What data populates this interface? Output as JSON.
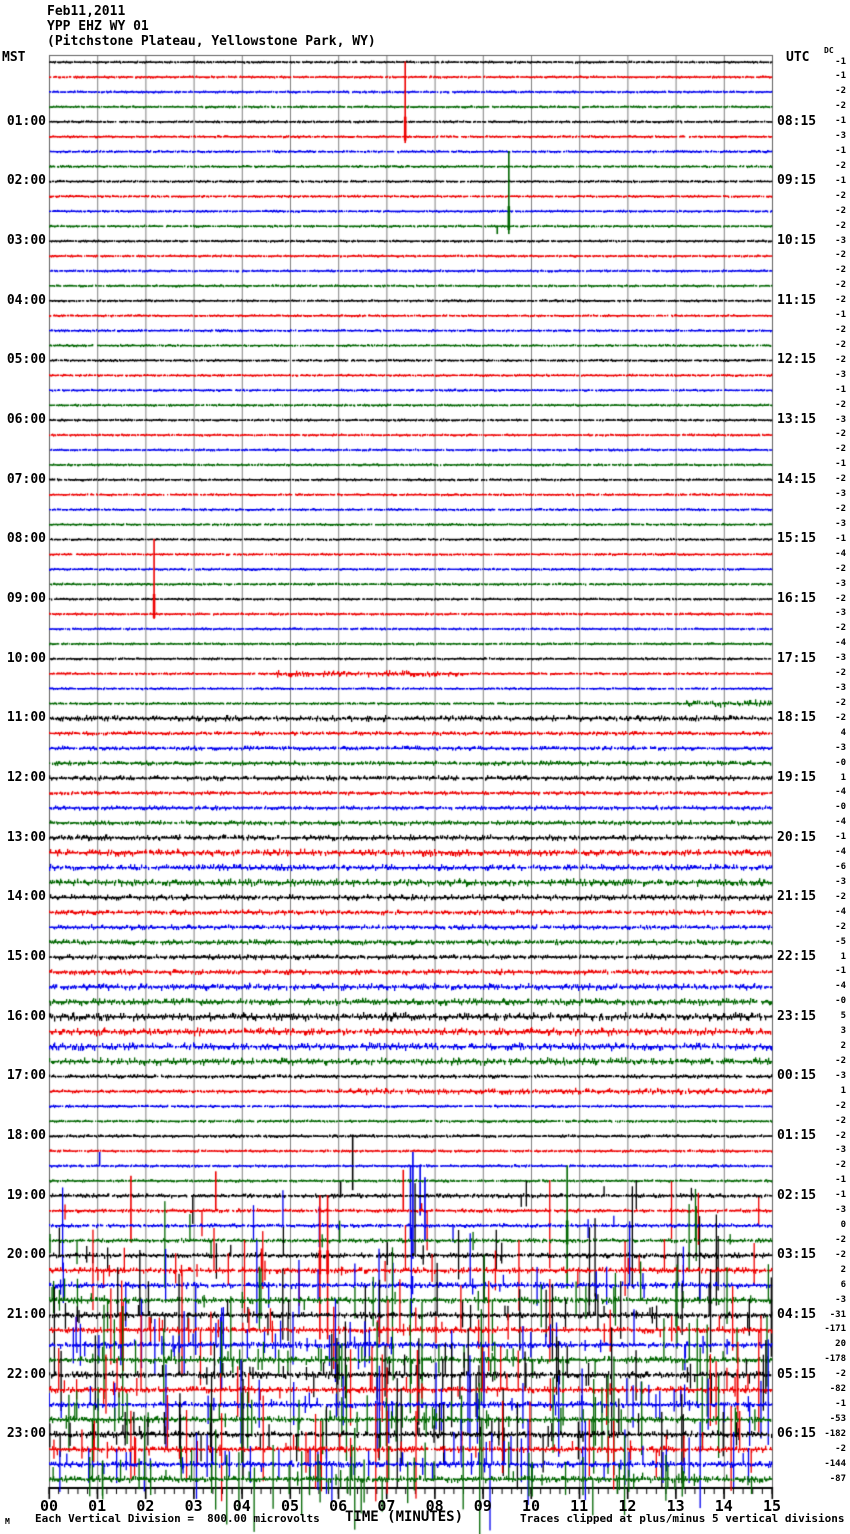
{
  "title": {
    "date": "Feb11,2011",
    "station": "YPP EHZ WY 01",
    "location": "(Pitchstone Plateau, Yellowstone Park, WY)"
  },
  "axes": {
    "left_header": "MST",
    "right_header": "UTC",
    "dc_header": "DC",
    "x_axis_title": "TIME (MINUTES)",
    "x_ticks": [
      "00",
      "01",
      "02",
      "03",
      "04",
      "05",
      "06",
      "07",
      "08",
      "09",
      "10",
      "11",
      "12",
      "13",
      "14",
      "15"
    ],
    "left_labels": [
      "01:00",
      "02:00",
      "03:00",
      "04:00",
      "05:00",
      "06:00",
      "07:00",
      "08:00",
      "09:00",
      "10:00",
      "11:00",
      "12:00",
      "13:00",
      "14:00",
      "15:00",
      "16:00",
      "17:00",
      "18:00",
      "19:00",
      "20:00",
      "21:00",
      "22:00",
      "23:00"
    ],
    "right_labels": [
      "08:15",
      "09:15",
      "10:15",
      "11:15",
      "12:15",
      "13:15",
      "14:15",
      "15:15",
      "16:15",
      "17:15",
      "18:15",
      "19:15",
      "20:15",
      "21:15",
      "22:15",
      "23:15",
      "00:15",
      "01:15",
      "02:15",
      "03:15",
      "04:15",
      "05:15",
      "06:15"
    ]
  },
  "footer": {
    "left": "Each Vertical Division =  800.00 microvolts",
    "right": "Traces clipped at plus/minus 5 vertical divisions",
    "corner": "M"
  },
  "chart_data": {
    "type": "line",
    "subtype": "helicorder-seismogram",
    "x_range_minutes": [
      0,
      15
    ],
    "minutes_per_line": 15,
    "lines_per_hour": 4,
    "division_microvolts": 800.0,
    "clip_divisions": 5,
    "trace_color_cycle": [
      "#000000",
      "#ee0000",
      "#0000ee",
      "#006600"
    ],
    "grid_color": "#808080",
    "grid": "vertical-minute-lines",
    "traces": [
      {
        "mst": "00:00",
        "dc": "-1",
        "n": 0.5
      },
      {
        "mst": "00:15",
        "dc": "-1",
        "n": 0.5
      },
      {
        "mst": "00:30",
        "dc": "-2",
        "n": 0.5
      },
      {
        "mst": "00:45",
        "dc": "-2",
        "n": 0.5
      },
      {
        "mst": "01:00",
        "dc": "-1",
        "n": 0.5
      },
      {
        "mst": "01:15",
        "dc": "-3",
        "n": 0.5,
        "s": [
          [
            7.39,
            5,
            0.4
          ]
        ]
      },
      {
        "mst": "01:30",
        "dc": "-1",
        "n": 0.5
      },
      {
        "mst": "01:45",
        "dc": "-2",
        "n": 0.5
      },
      {
        "mst": "02:00",
        "dc": "-1",
        "n": 0.5
      },
      {
        "mst": "02:15",
        "dc": "-2",
        "n": 0.5
      },
      {
        "mst": "02:30",
        "dc": "-2",
        "n": 0.5
      },
      {
        "mst": "02:45",
        "dc": "-2",
        "n": 0.5,
        "s": [
          [
            9.3,
            0,
            0.5
          ],
          [
            9.54,
            5,
            0.5
          ]
        ]
      },
      {
        "mst": "03:00",
        "dc": "-3",
        "n": 0.5
      },
      {
        "mst": "03:15",
        "dc": "-2",
        "n": 0.5
      },
      {
        "mst": "03:30",
        "dc": "-2",
        "n": 0.5
      },
      {
        "mst": "03:45",
        "dc": "-2",
        "n": 0.5
      },
      {
        "mst": "04:00",
        "dc": "-2",
        "n": 0.5
      },
      {
        "mst": "04:15",
        "dc": "-1",
        "n": 0.5
      },
      {
        "mst": "04:30",
        "dc": "-2",
        "n": 0.5
      },
      {
        "mst": "04:45",
        "dc": "-2",
        "n": 0.5
      },
      {
        "mst": "05:00",
        "dc": "-2",
        "n": 0.5
      },
      {
        "mst": "05:15",
        "dc": "-3",
        "n": 0.5
      },
      {
        "mst": "05:30",
        "dc": "-1",
        "n": 0.5
      },
      {
        "mst": "05:45",
        "dc": "-2",
        "n": 0.5
      },
      {
        "mst": "06:00",
        "dc": "-3",
        "n": 0.5
      },
      {
        "mst": "06:15",
        "dc": "-2",
        "n": 0.5
      },
      {
        "mst": "06:30",
        "dc": "-2",
        "n": 0.5
      },
      {
        "mst": "06:45",
        "dc": "-1",
        "n": 0.5
      },
      {
        "mst": "07:00",
        "dc": "-2",
        "n": 0.5
      },
      {
        "mst": "07:15",
        "dc": "-3",
        "n": 0.5
      },
      {
        "mst": "07:30",
        "dc": "-2",
        "n": 0.5
      },
      {
        "mst": "07:45",
        "dc": "-3",
        "n": 0.5
      },
      {
        "mst": "08:00",
        "dc": "-1",
        "n": 0.5
      },
      {
        "mst": "08:15",
        "dc": "-4",
        "n": 0.5
      },
      {
        "mst": "08:30",
        "dc": "-2",
        "n": 0.5
      },
      {
        "mst": "08:45",
        "dc": "-3",
        "n": 0.5
      },
      {
        "mst": "09:00",
        "dc": "-2",
        "n": 0.5
      },
      {
        "mst": "09:15",
        "dc": "-3",
        "n": 0.5,
        "s": [
          [
            2.18,
            5,
            0.3
          ]
        ]
      },
      {
        "mst": "09:30",
        "dc": "-2",
        "n": 0.5
      },
      {
        "mst": "09:45",
        "dc": "-4",
        "n": 0.5
      },
      {
        "mst": "10:00",
        "dc": "-3",
        "n": 0.5
      },
      {
        "mst": "10:15",
        "dc": "-2",
        "n": 0.5,
        "b": [
          [
            4.7,
            8.6,
            1.6
          ]
        ]
      },
      {
        "mst": "10:30",
        "dc": "-3",
        "n": 0.5
      },
      {
        "mst": "10:45",
        "dc": "-2",
        "n": 0.5,
        "b": [
          [
            13.2,
            15,
            1.9
          ]
        ]
      },
      {
        "mst": "11:00",
        "dc": "-2",
        "n": 1.4
      },
      {
        "mst": "11:15",
        "dc": "4",
        "n": 0.9
      },
      {
        "mst": "11:30",
        "dc": "-3",
        "n": 1.0
      },
      {
        "mst": "11:45",
        "dc": "-0",
        "n": 1.1
      },
      {
        "mst": "12:00",
        "dc": "1",
        "n": 1.2
      },
      {
        "mst": "12:15",
        "dc": "-4",
        "n": 0.9
      },
      {
        "mst": "12:30",
        "dc": "-0",
        "n": 1.0
      },
      {
        "mst": "12:45",
        "dc": "-4",
        "n": 1.1
      },
      {
        "mst": "13:00",
        "dc": "-1",
        "n": 1.4
      },
      {
        "mst": "13:15",
        "dc": "-4",
        "n": 1.7
      },
      {
        "mst": "13:30",
        "dc": "-6",
        "n": 1.5
      },
      {
        "mst": "13:45",
        "dc": "-3",
        "n": 1.8
      },
      {
        "mst": "14:00",
        "dc": "-2",
        "n": 1.4
      },
      {
        "mst": "14:15",
        "dc": "-4",
        "n": 1.2
      },
      {
        "mst": "14:30",
        "dc": "-2",
        "n": 1.2
      },
      {
        "mst": "14:45",
        "dc": "-5",
        "n": 1.3
      },
      {
        "mst": "15:00",
        "dc": "1",
        "n": 1.2
      },
      {
        "mst": "15:15",
        "dc": "-1",
        "n": 1.3
      },
      {
        "mst": "15:30",
        "dc": "-4",
        "n": 1.7
      },
      {
        "mst": "15:45",
        "dc": "-0",
        "n": 1.7
      },
      {
        "mst": "16:00",
        "dc": "5",
        "n": 2.0
      },
      {
        "mst": "16:15",
        "dc": "3",
        "n": 1.9
      },
      {
        "mst": "16:30",
        "dc": "2",
        "n": 1.9
      },
      {
        "mst": "16:45",
        "dc": "-2",
        "n": 1.8
      },
      {
        "mst": "17:00",
        "dc": "-3",
        "n": 0.9
      },
      {
        "mst": "17:15",
        "dc": "1",
        "n": 0.8,
        "b": [
          [
            6,
            15,
            1.5
          ]
        ]
      },
      {
        "mst": "17:30",
        "dc": "-2",
        "n": 0.6
      },
      {
        "mst": "17:45",
        "dc": "-2",
        "n": 0.6
      },
      {
        "mst": "18:00",
        "dc": "-2",
        "n": 0.7,
        "s": [
          [
            6.3,
            0,
            3.6
          ]
        ]
      },
      {
        "mst": "18:15",
        "dc": "-3",
        "n": 0.6
      },
      {
        "mst": "18:30",
        "dc": "-2",
        "n": 0.6,
        "s": [
          [
            1.05,
            0.9,
            0
          ],
          [
            7.5,
            0,
            4.9
          ],
          [
            7.7,
            0,
            3.3
          ]
        ]
      },
      {
        "mst": "18:45",
        "dc": "-1",
        "n": 0.6
      },
      {
        "mst": "19:00",
        "dc": "-1",
        "n": 1.0,
        "r": 6,
        "s": [
          [
            6.05,
            0.9,
            0
          ]
        ]
      },
      {
        "mst": "19:15",
        "dc": "-3",
        "n": 0.9,
        "r": 8,
        "s": [
          [
            1.7,
            2.3,
            2.1
          ],
          [
            3.46,
            2.6,
            0
          ],
          [
            7.35,
            2.7,
            0
          ]
        ]
      },
      {
        "mst": "19:30",
        "dc": "0",
        "n": 0.9,
        "r": 8,
        "s": [
          [
            7.55,
            4.9,
            2.2
          ],
          [
            7.8,
            3.2,
            1.0
          ]
        ]
      },
      {
        "mst": "19:45",
        "dc": "-2",
        "n": 1.0,
        "r": 12,
        "s": [
          [
            10.75,
            5,
            3.2
          ]
        ]
      },
      {
        "mst": "20:00",
        "dc": "-2",
        "n": 1.3,
        "r": 22
      },
      {
        "mst": "20:15",
        "dc": "2",
        "n": 1.5,
        "r": 28,
        "s": [
          [
            5.62,
            5,
            4.6
          ],
          [
            5.78,
            5,
            4.6
          ]
        ]
      },
      {
        "mst": "20:30",
        "dc": "6",
        "n": 1.5,
        "r": 28
      },
      {
        "mst": "20:45",
        "dc": "-3",
        "n": 1.6,
        "r": 35
      },
      {
        "mst": "21:00",
        "dc": "-31",
        "n": 1.6,
        "r": 45
      },
      {
        "mst": "21:15",
        "dc": "-171",
        "n": 1.6,
        "r": 40
      },
      {
        "mst": "21:30",
        "dc": "20",
        "n": 1.6,
        "r": 50
      },
      {
        "mst": "21:45",
        "dc": "-178",
        "n": 1.7,
        "r": 55
      },
      {
        "mst": "22:00",
        "dc": "-2",
        "n": 1.7,
        "r": 55
      },
      {
        "mst": "22:15",
        "dc": "-82",
        "n": 1.6,
        "r": 45
      },
      {
        "mst": "22:30",
        "dc": "-1",
        "n": 1.6,
        "r": 55
      },
      {
        "mst": "22:45",
        "dc": "-53",
        "n": 1.7,
        "r": 60
      },
      {
        "mst": "23:00",
        "dc": "-182",
        "n": 1.7,
        "r": 55
      },
      {
        "mst": "23:15",
        "dc": "-2",
        "n": 1.6,
        "r": 50
      },
      {
        "mst": "23:30",
        "dc": "-144",
        "n": 1.6,
        "r": 60
      },
      {
        "mst": "23:45",
        "dc": "-87",
        "n": 1.7,
        "r": 70
      }
    ]
  }
}
